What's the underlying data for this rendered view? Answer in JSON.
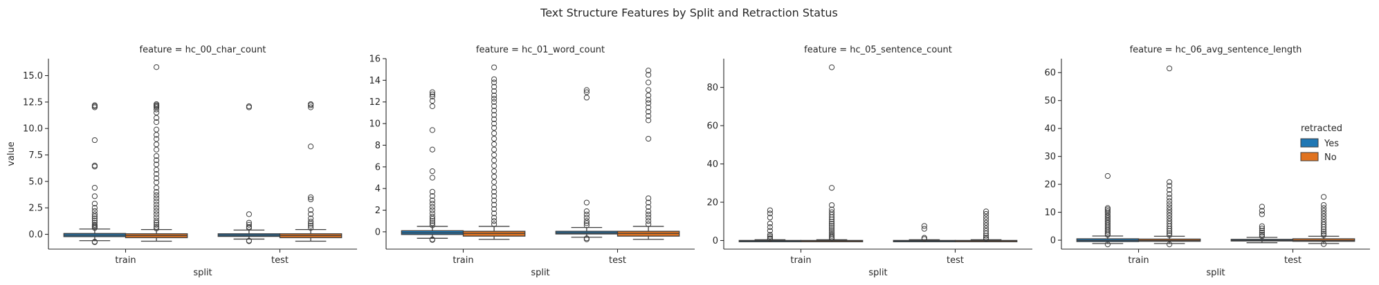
{
  "figure": {
    "title": "Text Structure Features by Split and Retraction Status"
  },
  "legend": {
    "title": "retracted",
    "items": [
      {
        "label": "Yes",
        "color": "#1f77b4"
      },
      {
        "label": "No",
        "color": "#e07320"
      }
    ]
  },
  "chart_data": [
    {
      "type": "box",
      "title": "feature = hc_00_char_count",
      "xlabel": "split",
      "ylabel": "value",
      "categories": [
        "train",
        "test"
      ],
      "hue": [
        "Yes",
        "No"
      ],
      "ylim": [
        -1.4,
        16.6
      ],
      "yticks": [
        0.0,
        2.5,
        5.0,
        7.5,
        10.0,
        12.5,
        15.0
      ],
      "ytick_labels": [
        "0.0",
        "2.5",
        "5.0",
        "7.5",
        "10.0",
        "12.5",
        "15.0"
      ],
      "boxes": [
        {
          "category": "train",
          "hue": "Yes",
          "q1": -0.22,
          "median": -0.08,
          "q3": 0.08,
          "whisker_low": -0.6,
          "whisker_high": 0.5,
          "outliers": [
            12.2,
            12.1,
            12.0,
            8.9,
            6.5,
            6.4,
            4.4,
            3.6,
            2.9,
            2.5,
            2.2,
            1.9,
            1.7,
            1.5,
            1.3,
            1.1,
            0.9,
            0.8,
            0.7,
            0.6,
            -0.7,
            -0.75
          ]
        },
        {
          "category": "train",
          "hue": "No",
          "q1": -0.32,
          "median": -0.12,
          "q3": 0.05,
          "whisker_low": -0.65,
          "whisker_high": 0.45,
          "outliers": [
            15.8,
            12.3,
            12.2,
            12.1,
            12.0,
            11.8,
            11.5,
            11.0,
            10.6,
            9.9,
            9.4,
            9.0,
            8.5,
            8.0,
            7.4,
            7.0,
            6.6,
            6.1,
            5.7,
            5.3,
            4.9,
            4.4,
            4.0,
            3.7,
            3.4,
            3.1,
            2.8,
            2.5,
            2.2,
            1.9,
            1.6,
            1.3,
            1.1,
            0.9,
            0.7,
            0.55
          ]
        },
        {
          "category": "test",
          "hue": "Yes",
          "q1": -0.2,
          "median": -0.08,
          "q3": 0.05,
          "whisker_low": -0.45,
          "whisker_high": 0.4,
          "outliers": [
            12.1,
            12.0,
            1.9,
            1.1,
            0.9,
            0.7,
            0.6,
            -0.6,
            -0.65
          ]
        },
        {
          "category": "test",
          "hue": "No",
          "q1": -0.32,
          "median": -0.12,
          "q3": 0.05,
          "whisker_low": -0.65,
          "whisker_high": 0.45,
          "outliers": [
            12.3,
            12.2,
            12.0,
            8.3,
            3.5,
            3.3,
            2.3,
            1.9,
            1.5,
            1.2,
            1.0,
            0.8,
            0.6
          ]
        }
      ]
    },
    {
      "type": "box",
      "title": "feature = hc_01_word_count",
      "xlabel": "split",
      "ylabel": "",
      "categories": [
        "train",
        "test"
      ],
      "hue": [
        "Yes",
        "No"
      ],
      "ylim": [
        -1.6,
        16.0
      ],
      "yticks": [
        0,
        2,
        4,
        6,
        8,
        10,
        12,
        14,
        16
      ],
      "ytick_labels": [
        "0",
        "2",
        "4",
        "6",
        "8",
        "10",
        "12",
        "14",
        "16"
      ],
      "boxes": [
        {
          "category": "train",
          "hue": "Yes",
          "q1": -0.25,
          "median": -0.1,
          "q3": 0.1,
          "whisker_low": -0.6,
          "whisker_high": 0.5,
          "outliers": [
            12.9,
            12.7,
            12.5,
            12.1,
            11.6,
            9.4,
            7.6,
            5.6,
            5.0,
            3.7,
            3.3,
            2.9,
            2.6,
            2.3,
            2.0,
            1.7,
            1.4,
            1.2,
            1.0,
            0.8,
            0.6,
            -0.7,
            -0.75
          ]
        },
        {
          "category": "train",
          "hue": "No",
          "q1": -0.4,
          "median": -0.15,
          "q3": 0.05,
          "whisker_low": -0.7,
          "whisker_high": 0.5,
          "outliers": [
            15.2,
            14.1,
            13.8,
            13.4,
            13.0,
            12.6,
            12.3,
            12.0,
            11.6,
            11.2,
            10.8,
            10.4,
            10.0,
            9.6,
            9.1,
            8.6,
            8.1,
            7.6,
            7.1,
            6.6,
            6.1,
            5.6,
            5.1,
            4.6,
            4.1,
            3.7,
            3.3,
            2.9,
            2.5,
            2.1,
            1.7,
            1.3,
            1.0,
            0.7
          ]
        },
        {
          "category": "test",
          "hue": "Yes",
          "q1": -0.2,
          "median": -0.1,
          "q3": 0.05,
          "whisker_low": -0.5,
          "whisker_high": 0.4,
          "outliers": [
            13.1,
            12.9,
            12.4,
            2.7,
            1.9,
            1.6,
            1.3,
            1.0,
            0.8,
            0.6,
            -0.6,
            -0.7
          ]
        },
        {
          "category": "test",
          "hue": "No",
          "q1": -0.4,
          "median": -0.15,
          "q3": 0.05,
          "whisker_low": -0.7,
          "whisker_high": 0.5,
          "outliers": [
            14.9,
            14.5,
            13.8,
            13.1,
            12.6,
            12.2,
            11.9,
            11.5,
            11.1,
            10.7,
            10.3,
            8.6,
            3.1,
            2.7,
            2.3,
            1.9,
            1.6,
            1.3,
            1.0,
            0.7
          ]
        }
      ]
    },
    {
      "type": "box",
      "title": "feature = hc_05_sentence_count",
      "xlabel": "split",
      "ylabel": "",
      "categories": [
        "train",
        "test"
      ],
      "hue": [
        "Yes",
        "No"
      ],
      "ylim": [
        -4.5,
        95
      ],
      "yticks": [
        0,
        20,
        40,
        60,
        80
      ],
      "ytick_labels": [
        "0",
        "20",
        "40",
        "60",
        "80"
      ],
      "boxes": [
        {
          "category": "train",
          "hue": "Yes",
          "q1": -0.3,
          "median": -0.15,
          "q3": 0.05,
          "whisker_low": -0.6,
          "whisker_high": 0.4,
          "outliers": [
            15.8,
            14.1,
            12.0,
            8.9,
            7.0,
            5.1,
            3.0,
            2.1,
            1.2,
            0.8
          ]
        },
        {
          "category": "train",
          "hue": "No",
          "q1": -0.3,
          "median": -0.15,
          "q3": 0.05,
          "whisker_low": -0.6,
          "whisker_high": 0.4,
          "outliers": [
            90.5,
            27.5,
            18.5,
            16.2,
            14.8,
            13.5,
            12.2,
            11.0,
            9.8,
            8.7,
            7.6,
            6.5,
            5.4,
            4.4,
            3.4,
            2.5,
            1.7,
            1.0
          ]
        },
        {
          "category": "test",
          "hue": "Yes",
          "q1": -0.3,
          "median": -0.15,
          "q3": 0.05,
          "whisker_low": -0.6,
          "whisker_high": 0.4,
          "outliers": [
            7.6,
            6.1,
            1.4,
            0.8
          ]
        },
        {
          "category": "test",
          "hue": "No",
          "q1": -0.3,
          "median": -0.15,
          "q3": 0.05,
          "whisker_low": -0.6,
          "whisker_high": 0.4,
          "outliers": [
            15.2,
            13.9,
            12.3,
            10.8,
            9.3,
            7.9,
            6.4,
            5.0,
            3.7,
            2.5,
            1.5,
            0.8
          ]
        }
      ]
    },
    {
      "type": "box",
      "title": "feature = hc_06_avg_sentence_length",
      "xlabel": "split",
      "ylabel": "",
      "categories": [
        "train",
        "test"
      ],
      "hue": [
        "Yes",
        "No"
      ],
      "ylim": [
        -3.2,
        65
      ],
      "yticks": [
        0,
        10,
        20,
        30,
        40,
        50,
        60
      ],
      "ytick_labels": [
        "0",
        "10",
        "20",
        "30",
        "40",
        "50",
        "60"
      ],
      "boxes": [
        {
          "category": "train",
          "hue": "Yes",
          "q1": -0.5,
          "median": -0.1,
          "q3": 0.5,
          "whisker_low": -1.2,
          "whisker_high": 1.5,
          "outliers": [
            23.0,
            11.5,
            11.0,
            10.4,
            9.8,
            9.1,
            8.5,
            7.9,
            7.2,
            6.6,
            6.0,
            5.4,
            4.8,
            4.2,
            3.6,
            3.0,
            2.4,
            1.9,
            -1.5
          ]
        },
        {
          "category": "train",
          "hue": "No",
          "q1": -0.4,
          "median": -0.1,
          "q3": 0.4,
          "whisker_low": -1.2,
          "whisker_high": 1.4,
          "outliers": [
            61.5,
            20.8,
            19.5,
            18.0,
            16.5,
            15.2,
            14.0,
            12.9,
            11.8,
            10.8,
            9.8,
            8.8,
            7.8,
            6.8,
            5.9,
            5.0,
            4.1,
            3.3,
            2.5,
            1.8,
            -1.5
          ]
        },
        {
          "category": "test",
          "hue": "Yes",
          "q1": -0.3,
          "median": -0.05,
          "q3": 0.3,
          "whisker_low": -0.9,
          "whisker_high": 1.0,
          "outliers": [
            12.0,
            10.5,
            9.3,
            5.0,
            4.2,
            3.4,
            2.7,
            2.0,
            1.4
          ]
        },
        {
          "category": "test",
          "hue": "No",
          "q1": -0.4,
          "median": -0.1,
          "q3": 0.5,
          "whisker_low": -1.2,
          "whisker_high": 1.4,
          "outliers": [
            15.5,
            12.6,
            11.5,
            10.5,
            9.5,
            8.5,
            7.5,
            6.5,
            5.6,
            4.7,
            3.9,
            3.1,
            2.4,
            1.8,
            -1.4
          ]
        }
      ]
    }
  ]
}
